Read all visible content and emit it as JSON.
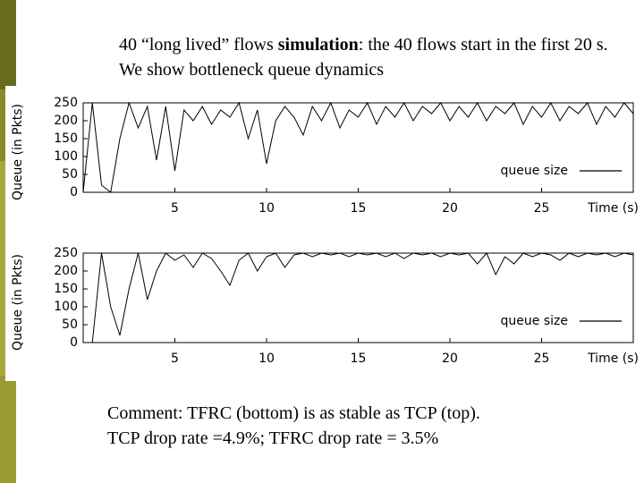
{
  "slide": {
    "title_parts": [
      "40 “long lived” flows ",
      "simulation",
      ": the 40 flows start in the first 20 s. We show bottleneck queue dynamics"
    ],
    "comment_lines": [
      "Comment: TFRC (bottom) is as stable as TCP (top).",
      "TCP drop rate =4.9%; TFRC drop rate = 3.5%"
    ]
  },
  "chart_data": [
    {
      "type": "line",
      "x_label": "Time (s)",
      "y_label": "Queue (in Pkts)",
      "xlim": [
        0,
        30
      ],
      "xticks": [
        5,
        10,
        15,
        20,
        25
      ],
      "ylim": [
        0,
        250
      ],
      "yticks": [
        0,
        50,
        100,
        150,
        200,
        250
      ],
      "legend": "lower right",
      "x": [
        0,
        0.5,
        1,
        1.5,
        2,
        2.5,
        3,
        3.5,
        4,
        4.5,
        5,
        5.5,
        6,
        6.5,
        7,
        7.5,
        8,
        8.5,
        9,
        9.5,
        10,
        10.5,
        11,
        11.5,
        12,
        12.5,
        13,
        13.5,
        14,
        14.5,
        15,
        15.5,
        16,
        16.5,
        17,
        17.5,
        18,
        18.5,
        19,
        19.5,
        20,
        20.5,
        21,
        21.5,
        22,
        22.5,
        23,
        23.5,
        24,
        24.5,
        25,
        25.5,
        26,
        26.5,
        27,
        27.5,
        28,
        28.5,
        29,
        29.5,
        30
      ],
      "series": [
        {
          "name": "queue size",
          "color": "#000000",
          "values": [
            0,
            250,
            20,
            0,
            150,
            250,
            180,
            240,
            90,
            240,
            60,
            230,
            200,
            240,
            190,
            230,
            210,
            250,
            150,
            230,
            80,
            200,
            240,
            210,
            160,
            240,
            200,
            250,
            180,
            230,
            210,
            250,
            190,
            240,
            210,
            250,
            200,
            240,
            220,
            250,
            200,
            240,
            210,
            250,
            200,
            240,
            220,
            250,
            190,
            240,
            210,
            250,
            200,
            240,
            220,
            250,
            190,
            240,
            210,
            250,
            220
          ]
        }
      ]
    },
    {
      "type": "line",
      "x_label": "Time (s)",
      "y_label": "Queue (in Pkts)",
      "xlim": [
        0,
        30
      ],
      "xticks": [
        5,
        10,
        15,
        20,
        25
      ],
      "ylim": [
        0,
        250
      ],
      "yticks": [
        0,
        50,
        100,
        150,
        200,
        250
      ],
      "legend": "lower right",
      "x": [
        0,
        0.5,
        1,
        1.5,
        2,
        2.5,
        3,
        3.5,
        4,
        4.5,
        5,
        5.5,
        6,
        6.5,
        7,
        7.5,
        8,
        8.5,
        9,
        9.5,
        10,
        10.5,
        11,
        11.5,
        12,
        12.5,
        13,
        13.5,
        14,
        14.5,
        15,
        15.5,
        16,
        16.5,
        17,
        17.5,
        18,
        18.5,
        19,
        19.5,
        20,
        20.5,
        21,
        21.5,
        22,
        22.5,
        23,
        23.5,
        24,
        24.5,
        25,
        25.5,
        26,
        26.5,
        27,
        27.5,
        28,
        28.5,
        29,
        29.5,
        30
      ],
      "series": [
        {
          "name": "queue size",
          "color": "#000000",
          "values": [
            0,
            0,
            250,
            100,
            20,
            150,
            250,
            120,
            200,
            250,
            230,
            245,
            210,
            250,
            235,
            200,
            160,
            230,
            250,
            200,
            240,
            250,
            210,
            245,
            250,
            240,
            250,
            245,
            250,
            240,
            250,
            245,
            250,
            240,
            250,
            235,
            250,
            245,
            250,
            240,
            250,
            245,
            250,
            220,
            250,
            190,
            240,
            220,
            250,
            240,
            250,
            245,
            230,
            250,
            240,
            250,
            245,
            250,
            240,
            250,
            245
          ]
        }
      ]
    }
  ]
}
